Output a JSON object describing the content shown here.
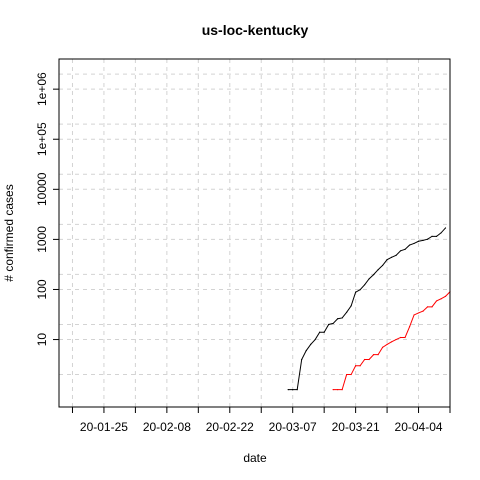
{
  "chart_data": {
    "type": "line",
    "title": "us-loc-kentucky",
    "xlabel": "date",
    "ylabel": "# confirmed cases",
    "y_scale": "log",
    "ylim": [
      0.45,
      4000000
    ],
    "x_start": "2020-01-15",
    "xlim_days": [
      0,
      87
    ],
    "x_ticks": [
      {
        "day": 10,
        "label": "20-01-25"
      },
      {
        "day": 24,
        "label": "20-02-08"
      },
      {
        "day": 38,
        "label": "20-02-22"
      },
      {
        "day": 52,
        "label": "20-03-07"
      },
      {
        "day": 66,
        "label": "20-03-21"
      },
      {
        "day": 80,
        "label": "20-04-04"
      }
    ],
    "x_minor_ticks": [
      3,
      17,
      31,
      45,
      59,
      73,
      87
    ],
    "y_ticks": [
      {
        "value": 10,
        "label": "10"
      },
      {
        "value": 100,
        "label": "100"
      },
      {
        "value": 1000,
        "label": "1000"
      },
      {
        "value": 10000,
        "label": "10000"
      },
      {
        "value": 100000,
        "label": "1e+05"
      },
      {
        "value": 1000000,
        "label": "1e+06"
      }
    ],
    "y_minor_grid": [
      2,
      20,
      200,
      2000,
      20000,
      200000,
      2000000
    ],
    "grid": true,
    "series": [
      {
        "color": "#000000",
        "points": [
          [
            51,
            1
          ],
          [
            52,
            1
          ],
          [
            53,
            1
          ],
          [
            54,
            4
          ],
          [
            55,
            6
          ],
          [
            56,
            8
          ],
          [
            57,
            10
          ],
          [
            58,
            14
          ],
          [
            59,
            14
          ],
          [
            60,
            20
          ],
          [
            61,
            21
          ],
          [
            62,
            26
          ],
          [
            63,
            27
          ],
          [
            64,
            35
          ],
          [
            65,
            47
          ],
          [
            66,
            88
          ],
          [
            67,
            99
          ],
          [
            68,
            124
          ],
          [
            69,
            163
          ],
          [
            70,
            198
          ],
          [
            71,
            248
          ],
          [
            72,
            302
          ],
          [
            73,
            394
          ],
          [
            74,
            439
          ],
          [
            75,
            480
          ],
          [
            76,
            591
          ],
          [
            77,
            632
          ],
          [
            78,
            770
          ],
          [
            79,
            831
          ],
          [
            80,
            917
          ],
          [
            81,
            955
          ],
          [
            82,
            1008
          ],
          [
            83,
            1149
          ],
          [
            84,
            1149
          ],
          [
            85,
            1346
          ],
          [
            86,
            1693
          ]
        ]
      },
      {
        "color": "#ff0000",
        "points": [
          [
            61,
            1
          ],
          [
            62,
            1
          ],
          [
            63,
            1
          ],
          [
            64,
            2
          ],
          [
            65,
            2
          ],
          [
            66,
            3
          ],
          [
            67,
            3
          ],
          [
            68,
            4
          ],
          [
            69,
            4
          ],
          [
            70,
            5
          ],
          [
            71,
            5
          ],
          [
            72,
            7
          ],
          [
            73,
            8
          ],
          [
            74,
            9
          ],
          [
            75,
            10
          ],
          [
            76,
            11
          ],
          [
            77,
            11
          ],
          [
            78,
            18
          ],
          [
            79,
            31
          ],
          [
            80,
            34
          ],
          [
            81,
            37
          ],
          [
            82,
            45
          ],
          [
            83,
            45
          ],
          [
            84,
            59
          ],
          [
            85,
            65
          ],
          [
            86,
            73
          ],
          [
            87,
            90
          ]
        ]
      }
    ]
  }
}
